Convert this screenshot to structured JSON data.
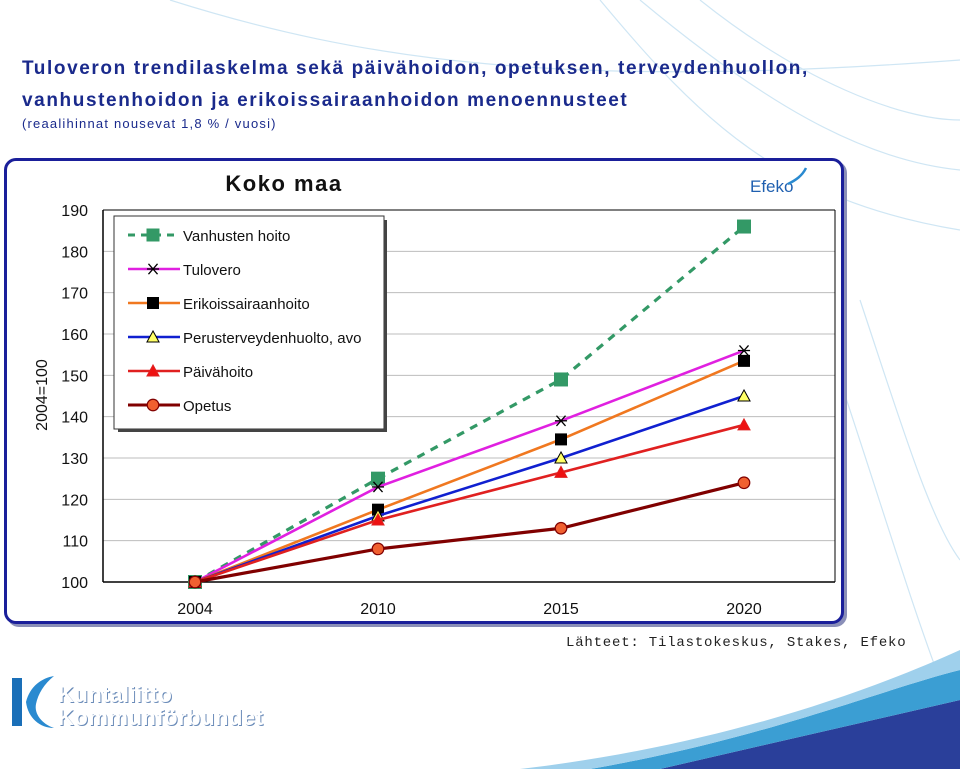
{
  "header": {
    "title_line1": "Tuloveron trendilaskelma sekä päivähoidon, opetuksen, terveydenhuollon,",
    "title_line2": "vanhustenhoidon ja erikoissairaanhoidon menoennusteet",
    "subtitle": "(reaalihinnat nousevat 1,8 % / vuosi)"
  },
  "brand": {
    "efeko": "Efeko"
  },
  "footer": {
    "source": "Lähteet: Tilastokeskus, Stakes, Efeko",
    "logo_line1": "Kuntaliitto",
    "logo_line2": "Kommunförbundet"
  },
  "colors": {
    "title": "#1a2a8c",
    "panel_border": "#1a1f9a",
    "grid": "#bdbdbd"
  },
  "chart_data": {
    "type": "line",
    "title": "Koko maa",
    "xlabel": "",
    "ylabel": "2004=100",
    "x": [
      2004,
      2010,
      2015,
      2020
    ],
    "x_ticks": [
      "2004",
      "2010",
      "2015",
      "2020"
    ],
    "ylim": [
      100,
      190
    ],
    "y_ticks": [
      100,
      110,
      120,
      130,
      140,
      150,
      160,
      170,
      180,
      190
    ],
    "grid": true,
    "legend_position": "top-left",
    "series": [
      {
        "name": "Vanhusten hoito",
        "values": [
          100,
          125,
          149,
          186
        ],
        "color": "#339966",
        "line_style": "dashed",
        "marker": "square",
        "marker_fill": "#339966"
      },
      {
        "name": "Tulovero",
        "values": [
          100,
          123,
          139,
          156
        ],
        "color": "#e020e0",
        "line_style": "solid",
        "marker": "asterisk",
        "marker_fill": "#000000"
      },
      {
        "name": "Erikoissairaanhoito",
        "values": [
          100,
          117.5,
          134.5,
          153.5
        ],
        "color": "#f07820",
        "line_style": "solid",
        "marker": "square",
        "marker_fill": "#000000"
      },
      {
        "name": "Perusterveydenhuolto, avo",
        "values": [
          100,
          116,
          130,
          145
        ],
        "color": "#1020d0",
        "line_style": "solid",
        "marker": "triangle",
        "marker_fill": "#ffff66"
      },
      {
        "name": "Päivähoito",
        "values": [
          100,
          115,
          126.5,
          138
        ],
        "color": "#e02020",
        "line_style": "solid",
        "marker": "triangle",
        "marker_fill": "#ee1111"
      },
      {
        "name": "Opetus",
        "values": [
          100,
          108,
          113,
          124
        ],
        "color": "#800000",
        "line_style": "solid",
        "marker": "circle",
        "marker_fill": "#f06030"
      }
    ]
  }
}
